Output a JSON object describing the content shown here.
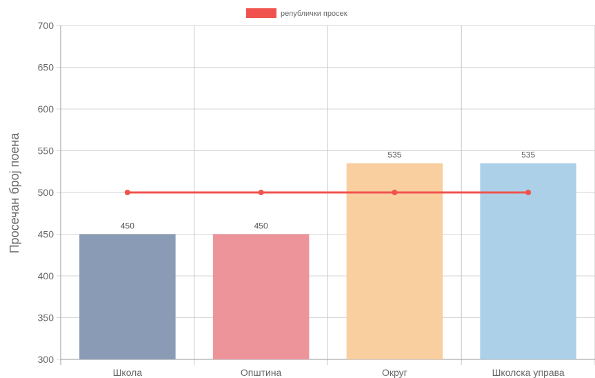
{
  "chart_data": {
    "type": "bar",
    "title": "",
    "xlabel": "",
    "ylabel": "Просечан број поена",
    "ylim": [
      300,
      700
    ],
    "yticks": [
      300,
      350,
      400,
      450,
      500,
      550,
      600,
      650,
      700
    ],
    "grid": true,
    "legend_position": "top-center",
    "categories": [
      "Школа",
      "Општина",
      "Округ",
      "Школска управа"
    ],
    "series": [
      {
        "values": [
          450,
          450,
          535,
          535
        ],
        "colors": [
          "#8a9cb5",
          "#ed949b",
          "#f9cf9f",
          "#acd0e8"
        ],
        "data_labels": [
          "450",
          "450",
          "535",
          "535"
        ]
      },
      {
        "name": "републички просек",
        "type": "line",
        "values": [
          500,
          500,
          500,
          500
        ],
        "color": "#f0534e"
      }
    ]
  }
}
